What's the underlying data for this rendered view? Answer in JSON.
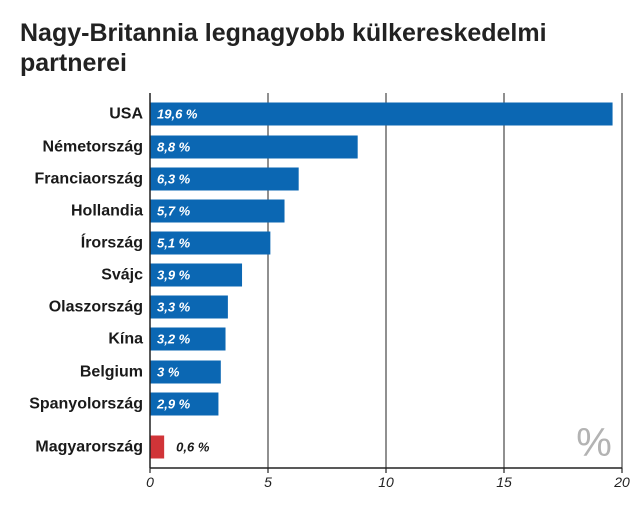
{
  "title": "Nagy-Britannia legnagyobb külkereskedelmi partnerei",
  "colors": {
    "bar": "#0b67b3",
    "highlight": "#d13438",
    "grid": "#222222"
  },
  "chart_data": {
    "type": "bar",
    "orientation": "horizontal",
    "title": "Nagy-Britannia legnagyobb külkereskedelmi partnerei",
    "unit": "%",
    "xlim": [
      0,
      20
    ],
    "xticks": [
      0,
      5,
      10,
      15,
      20
    ],
    "grid": true,
    "categories": [
      "USA",
      "Németország",
      "Franciaország",
      "Hollandia",
      "Írország",
      "Svájc",
      "Olaszország",
      "Kína",
      "Belgium",
      "Spanyolország",
      "Magyarország"
    ],
    "values": [
      19.6,
      8.8,
      6.3,
      5.7,
      5.1,
      3.9,
      3.3,
      3.2,
      3,
      2.9,
      0.6
    ],
    "value_labels": [
      "19,6 %",
      "8,8 %",
      "6,3 %",
      "5,7 %",
      "5,1 %",
      "3,9 %",
      "3,3 %",
      "3,2 %",
      "3 %",
      "2,9 %",
      "0,6 %"
    ],
    "highlight": [
      "Magyarország"
    ]
  }
}
